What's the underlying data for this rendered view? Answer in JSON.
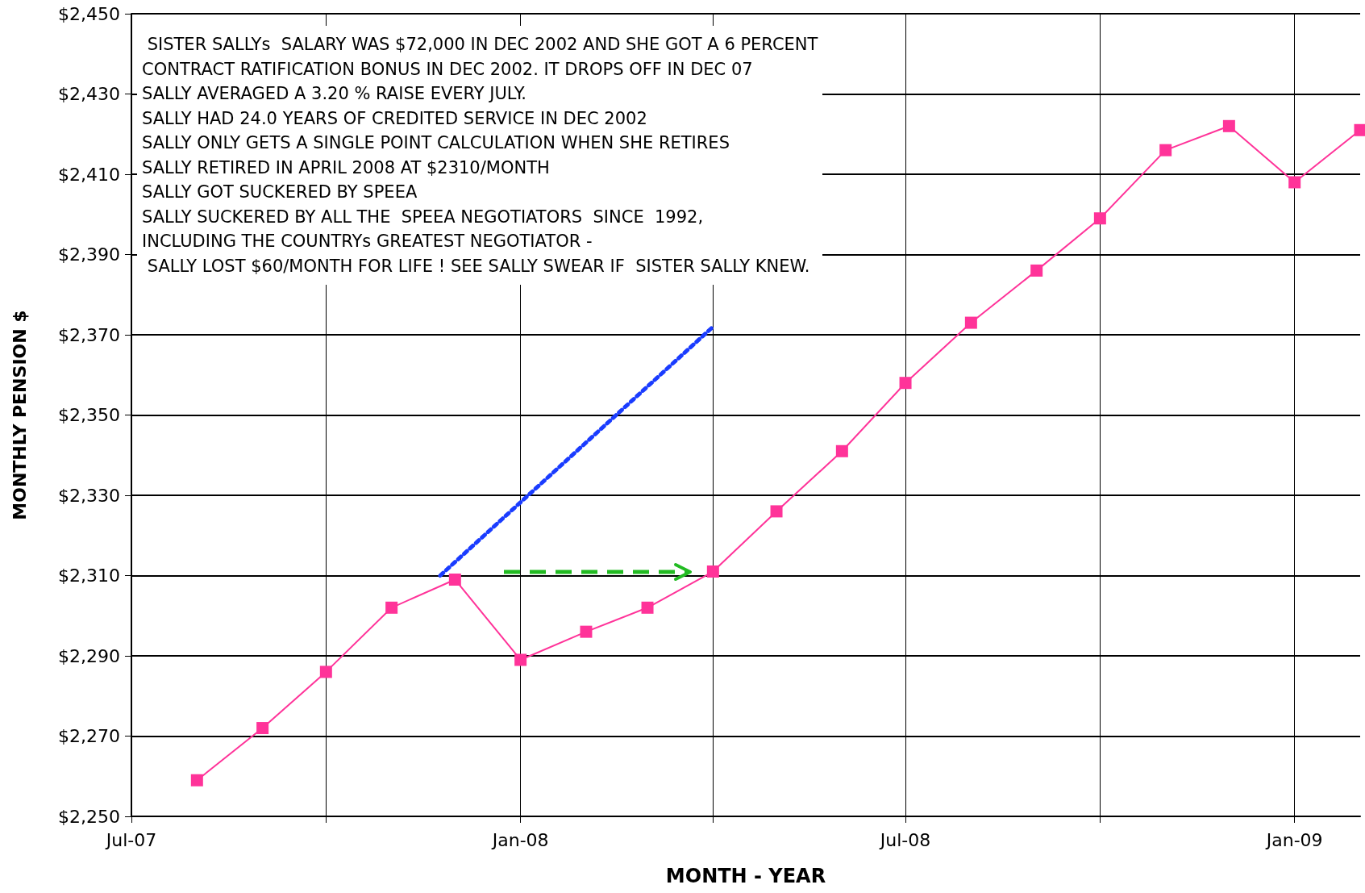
{
  "chart_data": {
    "type": "line",
    "xlabel": "MONTH - YEAR",
    "ylabel": "MONTHLY PENSION $",
    "annotations": [
      " SISTER SALLYs  SALARY WAS $72,000 IN DEC 2002 AND SHE GOT A 6 PERCENT",
      "CONTRACT RATIFICATION BONUS IN DEC 2002. IT DROPS OFF IN DEC 07",
      "SALLY AVERAGED A 3.20 % RAISE EVERY JULY.",
      "SALLY HAD 24.0 YEARS OF CREDITED SERVICE IN DEC 2002",
      "SALLY ONLY GETS A SINGLE POINT CALCULATION WHEN SHE RETIRES",
      "SALLY RETIRED IN APRIL 2008 AT $2310/MONTH",
      "SALLY GOT SUCKERED BY SPEEA",
      "SALLY SUCKERED BY ALL THE  SPEEA NEGOTIATORS  SINCE  1992,",
      "INCLUDING THE COUNTRYs GREATEST NEGOTIATOR -",
      " SALLY LOST $60/MONTH FOR LIFE ! SEE SALLY SWEAR IF  SISTER SALLY KNEW."
    ],
    "series": [
      {
        "color": "#ff3399",
        "marker": "square",
        "line_style": "solid",
        "x": [
          "2007-08",
          "2007-09",
          "2007-10",
          "2007-11",
          "2007-12",
          "2008-01",
          "2008-02",
          "2008-03",
          "2008-04",
          "2008-05",
          "2008-06",
          "2008-07",
          "2008-08",
          "2008-09",
          "2008-10",
          "2008-11",
          "2008-12",
          "2009-01",
          "2009-02"
        ],
        "values": [
          2259,
          2272,
          2286,
          2302,
          2309,
          2289,
          2296,
          2302,
          2311,
          2326,
          2341,
          2358,
          2373,
          2386,
          2399,
          2416,
          2422,
          2408,
          2421
        ]
      },
      {
        "color": "#1a3cff",
        "marker": "none",
        "line_style": "dotted",
        "x": [
          "2007-11-24",
          "2008-04-01"
        ],
        "values": [
          2310,
          2372
        ]
      }
    ],
    "xlim": [
      "2007-07",
      "2009-02"
    ],
    "xticks": [
      {
        "value": "2007-07",
        "label": "Jul-07"
      },
      {
        "value": "2007-10",
        "label": null
      },
      {
        "value": "2008-01",
        "label": "Jan-08"
      },
      {
        "value": "2008-04",
        "label": null
      },
      {
        "value": "2008-07",
        "label": "Jul-08"
      },
      {
        "value": "2008-10",
        "label": null
      },
      {
        "value": "2009-01",
        "label": "Jan-09"
      }
    ],
    "ylim": [
      2250,
      2450
    ],
    "yticks": [
      {
        "value": 2250,
        "label": "$2,250"
      },
      {
        "value": 2270,
        "label": "$2,270"
      },
      {
        "value": 2290,
        "label": "$2,290"
      },
      {
        "value": 2310,
        "label": "$2,310"
      },
      {
        "value": 2330,
        "label": "$2,330"
      },
      {
        "value": 2350,
        "label": "$2,350"
      },
      {
        "value": 2370,
        "label": "$2,370"
      },
      {
        "value": 2390,
        "label": "$2,390"
      },
      {
        "value": 2410,
        "label": "$2,410"
      },
      {
        "value": 2430,
        "label": "$2,430"
      },
      {
        "value": 2450,
        "label": "$2,450"
      }
    ],
    "grid": true
  }
}
